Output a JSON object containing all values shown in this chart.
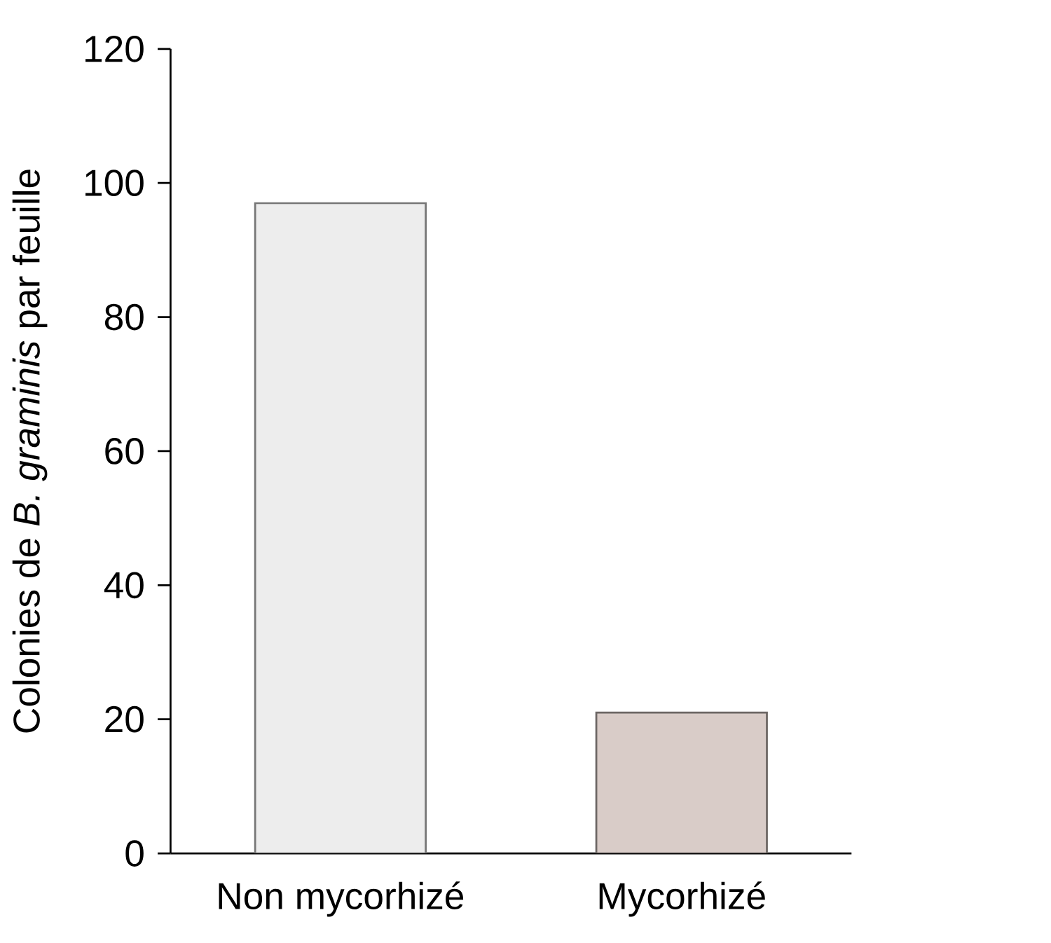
{
  "chart_data": {
    "type": "bar",
    "ylabel": "Colonies de *B. graminis* par feuille",
    "categories": [
      "Non mycorhizé",
      "Mycorhizé"
    ],
    "values": [
      97,
      21
    ],
    "colors": [
      "#ededed",
      "#d9ccc8"
    ],
    "ylim": [
      0,
      120
    ],
    "yticks": [
      0,
      20,
      40,
      60,
      80,
      100,
      120
    ]
  }
}
